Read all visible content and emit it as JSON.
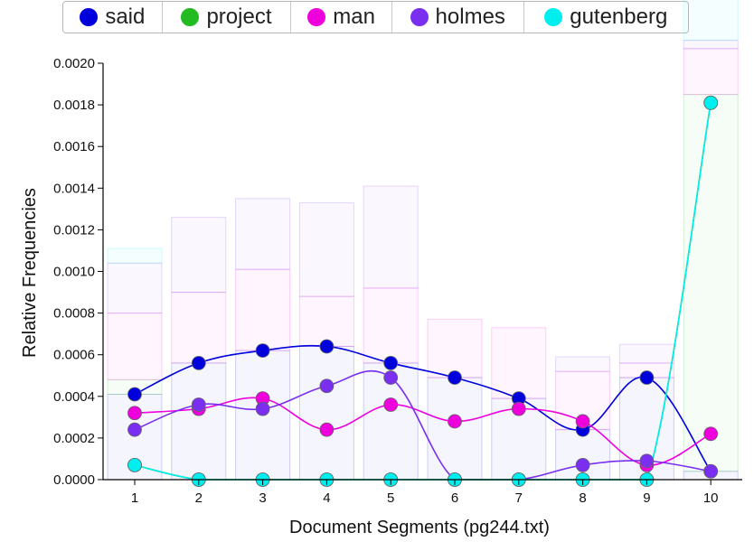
{
  "legend": {
    "items": [
      {
        "label": "said",
        "color": "#0000dd"
      },
      {
        "label": "project",
        "color": "#22bb22"
      },
      {
        "label": "man",
        "color": "#ee00dd"
      },
      {
        "label": "holmes",
        "color": "#7a2ff0"
      },
      {
        "label": "gutenberg",
        "color": "#00eeee"
      }
    ]
  },
  "chart_data": {
    "type": "line",
    "xlabel": "Document Segments (pg244.txt)",
    "ylabel": "Relative Frequencies",
    "x": [
      1,
      2,
      3,
      4,
      5,
      6,
      7,
      8,
      9,
      10
    ],
    "ylim": [
      0,
      0.002
    ],
    "yticks": [
      "0.0000",
      "0.0002",
      "0.0004",
      "0.0006",
      "0.0008",
      "0.0010",
      "0.0012",
      "0.0014",
      "0.0016",
      "0.0018",
      "0.0020"
    ],
    "xticks": [
      "1",
      "2",
      "3",
      "4",
      "5",
      "6",
      "7",
      "8",
      "9",
      "10"
    ],
    "grid": false,
    "legend_position": "top",
    "series": [
      {
        "name": "said",
        "color": "#0000dd",
        "values": [
          0.00041,
          0.00056,
          0.00062,
          0.00064,
          0.00056,
          0.00049,
          0.00039,
          0.00024,
          0.00049,
          4e-05
        ]
      },
      {
        "name": "project",
        "color": "#22bb22",
        "values": [
          7e-05,
          0.0,
          0.0,
          0.0,
          0.0,
          0.0,
          0.0,
          0.0,
          0.0,
          0.00181
        ]
      },
      {
        "name": "man",
        "color": "#ee00dd",
        "values": [
          0.00032,
          0.00034,
          0.00039,
          0.00024,
          0.00036,
          0.00028,
          0.00034,
          0.00028,
          7e-05,
          0.00022
        ]
      },
      {
        "name": "holmes",
        "color": "#7a2ff0",
        "values": [
          0.00024,
          0.00036,
          0.00034,
          0.00045,
          0.00049,
          0.0,
          0.0,
          7e-05,
          9e-05,
          4e-05
        ]
      },
      {
        "name": "gutenberg",
        "color": "#00eeee",
        "values": [
          7e-05,
          0.0,
          0.0,
          0.0,
          0.0,
          0.0,
          0.0,
          0.0,
          0.0,
          0.00181
        ]
      }
    ]
  }
}
